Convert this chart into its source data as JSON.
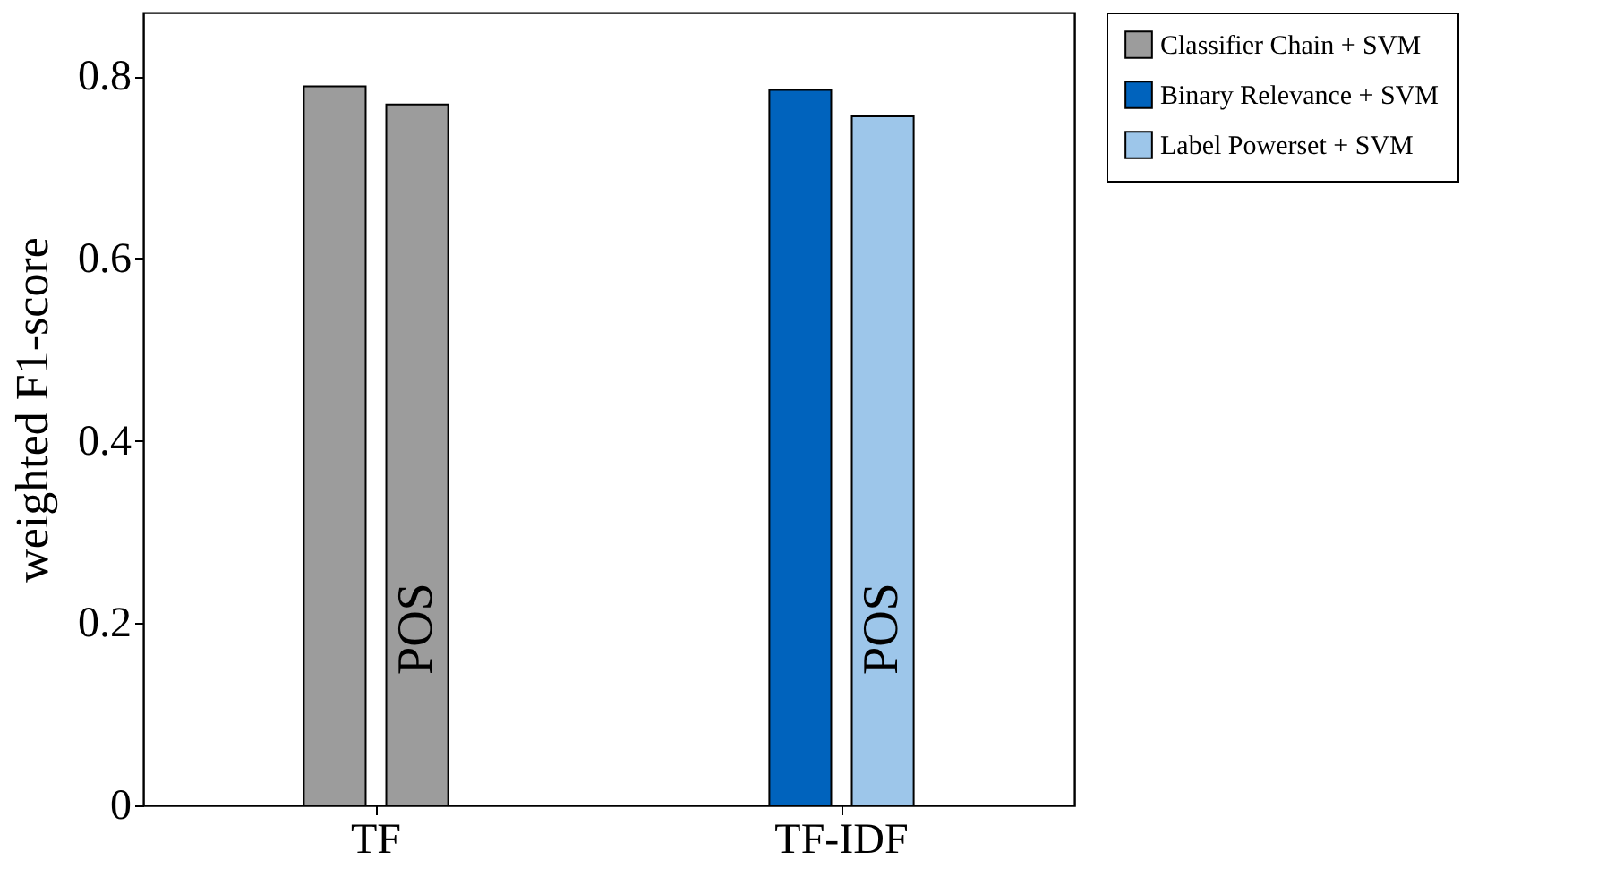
{
  "chart_data": {
    "type": "bar",
    "ylabel": "weighted F1-score",
    "categories": [
      "TF",
      "TF-IDF"
    ],
    "series": [
      {
        "name": "Classifier Chain + SVM",
        "color": "#9c9c9c",
        "values": [
          0.789,
          null
        ]
      },
      {
        "color": "#9c9c9c",
        "values": [
          0.769,
          null
        ]
      },
      {
        "name": "Binary Relevance + SVM",
        "color": "#0063bd",
        "values": [
          null,
          0.785
        ]
      },
      {
        "name": "Label Powerset + SVM",
        "color": "#9dc6ea",
        "values": [
          null,
          0.756
        ]
      }
    ],
    "ylim": [
      0,
      0.87
    ],
    "yticks": [
      0,
      0.2,
      0.4,
      0.6,
      0.8
    ],
    "grid": false,
    "legend": "top right",
    "annotations": [
      "POS",
      "POS"
    ]
  }
}
